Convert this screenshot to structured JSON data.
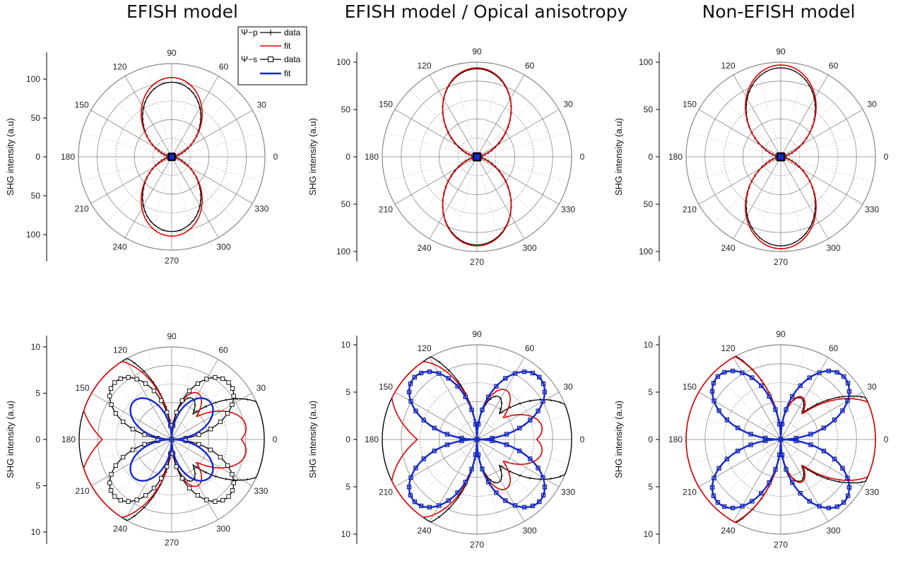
{
  "titles": [
    "EFISH model",
    "EFISH model / Opical anisotropy",
    "Non-EFISH model"
  ],
  "legend": {
    "group1": "Ψ−p",
    "group2": "Ψ−s",
    "data_label": "data",
    "fit_label": "fit"
  },
  "colors": {
    "p_data": "#000000",
    "p_fit": "#e00000",
    "s_data": "#000000",
    "s_fit": "#1428d2",
    "grid": "#888888"
  },
  "chart_data": [
    {
      "type": "polar",
      "title": "EFISH model",
      "ylabel": "SHG intensity (a.u)",
      "radial_ticks": [
        "100",
        "50",
        "0",
        "50",
        "100"
      ],
      "rmax": 120,
      "angle_ticks": [
        "0",
        "30",
        "60",
        "90",
        "120",
        "150",
        "180",
        "210",
        "240",
        "270",
        "300",
        "330"
      ],
      "legend": true,
      "series": [
        {
          "name": "Ψ−p data",
          "model": "lobe2",
          "amp": 93,
          "core": 3,
          "style": "data"
        },
        {
          "name": "Ψ−p fit",
          "model": "lobe2",
          "amp": 102,
          "core": 0,
          "style": "fit"
        },
        {
          "name": "Ψ−s data",
          "model": "quad",
          "amp": 3,
          "style": "sdata"
        },
        {
          "name": "Ψ−s fit",
          "model": "quad",
          "amp": 3,
          "style": "sfit"
        }
      ]
    },
    {
      "type": "polar",
      "title": "EFISH model / Opical anisotropy",
      "ylabel": "SHG intensity (a.u)",
      "radial_ticks": [
        "100",
        "50",
        "0",
        "50",
        "100"
      ],
      "rmax": 100,
      "angle_ticks": [
        "0",
        "30",
        "60",
        "90",
        "120",
        "150",
        "180",
        "210",
        "240",
        "270",
        "300",
        "330"
      ],
      "legend": false,
      "series": [
        {
          "name": "Ψ−p data",
          "model": "lobe2",
          "amp": 91,
          "core": 2,
          "style": "data"
        },
        {
          "name": "Ψ−p fit",
          "model": "lobe2",
          "amp": 94,
          "core": 0,
          "style": "fit"
        },
        {
          "name": "Ψ−s data",
          "model": "quad",
          "amp": 3,
          "style": "sdata"
        },
        {
          "name": "Ψ−s fit",
          "model": "quad",
          "amp": 3,
          "style": "sfit"
        }
      ]
    },
    {
      "type": "polar",
      "title": "Non-EFISH model",
      "ylabel": "SHG intensity (a.u)",
      "radial_ticks": [
        "100",
        "50",
        "0",
        "50",
        "100"
      ],
      "rmax": 100,
      "angle_ticks": [
        "0",
        "30",
        "60",
        "90",
        "120",
        "150",
        "180",
        "210",
        "240",
        "270",
        "300",
        "330"
      ],
      "legend": false,
      "series": [
        {
          "name": "Ψ−p data",
          "model": "lobe2",
          "amp": 92,
          "core": 2,
          "style": "data"
        },
        {
          "name": "Ψ−p fit",
          "model": "lobe2",
          "amp": 97,
          "core": 0,
          "style": "fit"
        },
        {
          "name": "Ψ−s data",
          "model": "quad",
          "amp": 3,
          "style": "sdata"
        },
        {
          "name": "Ψ−s fit",
          "model": "quad",
          "amp": 3,
          "style": "sfit"
        }
      ]
    },
    {
      "type": "polar",
      "ylabel": "SHG intensity (a.u)",
      "radial_ticks": [
        "10",
        "5",
        "0",
        "5",
        "10"
      ],
      "rmax": 10,
      "angle_ticks": [
        "0",
        "30",
        "60",
        "90",
        "120",
        "150",
        "180",
        "210",
        "240",
        "270",
        "300",
        "330"
      ],
      "legend": false,
      "series": [
        {
          "name": "Ψ−p data",
          "model": "p4",
          "c0": 11,
          "cd": 12,
          "s": 3.6,
          "style": "data"
        },
        {
          "name": "Ψ−p fit",
          "model": "p4",
          "c0": 7.5,
          "cd": 12,
          "s": 3.6,
          "style": "fit"
        },
        {
          "name": "Ψ−s data",
          "model": "quad",
          "amp": 8.7,
          "style": "sdata"
        },
        {
          "name": "Ψ−s fit",
          "model": "quad",
          "amp": 5.8,
          "style": "sfit"
        }
      ]
    },
    {
      "type": "polar",
      "ylabel": "SHG intensity (a.u)",
      "radial_ticks": [
        "10",
        "5",
        "0",
        "5",
        "10"
      ],
      "rmax": 10,
      "angle_ticks": [
        "0",
        "30",
        "60",
        "90",
        "120",
        "150",
        "180",
        "210",
        "240",
        "270",
        "300",
        "330"
      ],
      "legend": false,
      "series": [
        {
          "name": "Ψ−p data",
          "model": "p4",
          "c0": 10.5,
          "cd": 12,
          "s": 3.6,
          "style": "data"
        },
        {
          "name": "Ψ−p fit",
          "model": "p4",
          "c0": 6.3,
          "cd": 12,
          "s": 3.6,
          "style": "fit"
        },
        {
          "name": "Ψ−s data",
          "model": "quad",
          "amp": 9.3,
          "style": "sdata"
        },
        {
          "name": "Ψ−s fit",
          "model": "quad",
          "amp": 9.3,
          "style": "sfit"
        }
      ]
    },
    {
      "type": "polar",
      "ylabel": "SHG intensity (a.u)",
      "radial_ticks": [
        "10",
        "5",
        "0",
        "5",
        "10"
      ],
      "rmax": 10,
      "angle_ticks": [
        "0",
        "30",
        "60",
        "90",
        "120",
        "150",
        "180",
        "210",
        "240",
        "270",
        "300",
        "330"
      ],
      "legend": false,
      "series": [
        {
          "name": "Ψ−p data",
          "model": "p4",
          "c0": 11.5,
          "cd": 12,
          "s": 3.6,
          "style": "data"
        },
        {
          "name": "Ψ−p fit",
          "model": "p4",
          "c0": 10.8,
          "cd": 12,
          "s": 3.6,
          "style": "fit"
        },
        {
          "name": "Ψ−s data",
          "model": "quad",
          "amp": 9.4,
          "style": "sdata"
        },
        {
          "name": "Ψ−s fit",
          "model": "quad",
          "amp": 9.4,
          "style": "sfit"
        }
      ]
    }
  ]
}
